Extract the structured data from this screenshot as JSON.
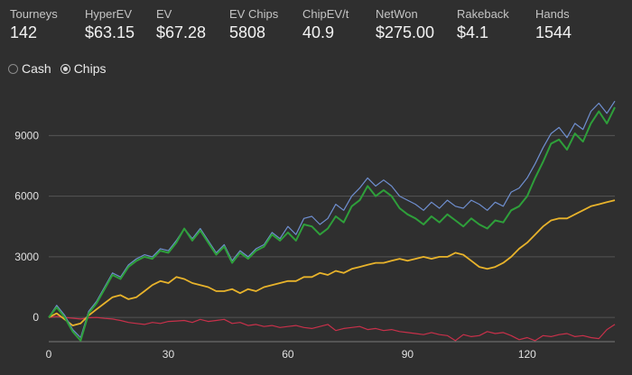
{
  "stats": [
    {
      "label": "Tourneys",
      "value": "142"
    },
    {
      "label": "HyperEV",
      "value": "$63.15"
    },
    {
      "label": "EV",
      "value": "$67.28"
    },
    {
      "label": "EV Chips",
      "value": "5808"
    },
    {
      "label": "ChipEV/t",
      "value": "40.9"
    },
    {
      "label": "NetWon",
      "value": "$275.00"
    },
    {
      "label": "Rakeback",
      "value": "$4.1"
    },
    {
      "label": "Hands",
      "value": "1544"
    }
  ],
  "modes": {
    "cash_label": "Cash",
    "chips_label": "Chips",
    "selected": "Chips"
  },
  "chart_data": {
    "type": "line",
    "x_ticks": [
      0,
      30,
      60,
      90,
      120
    ],
    "y_ticks": [
      0,
      3000,
      6000,
      9000
    ],
    "xlim": [
      0,
      142
    ],
    "ylim": [
      -1200,
      10800
    ],
    "grid": "horizontal",
    "colors": {
      "blue": "#6f8fd0",
      "green": "#2e9f3a",
      "yellow": "#e8b32b",
      "red": "#c8304a"
    },
    "series": [
      {
        "color": "blue",
        "x": [
          0,
          2,
          4,
          6,
          8,
          10,
          12,
          14,
          16,
          18,
          20,
          22,
          24,
          26,
          28,
          30,
          32,
          34,
          36,
          38,
          40,
          42,
          44,
          46,
          48,
          50,
          52,
          54,
          56,
          58,
          60,
          62,
          64,
          66,
          68,
          70,
          72,
          74,
          76,
          78,
          80,
          82,
          84,
          86,
          88,
          90,
          92,
          94,
          96,
          98,
          100,
          102,
          104,
          106,
          108,
          110,
          112,
          114,
          116,
          118,
          120,
          122,
          124,
          126,
          128,
          130,
          132,
          134,
          136,
          138,
          140,
          142
        ],
        "y": [
          0,
          600,
          100,
          -600,
          -1000,
          300,
          800,
          1500,
          2200,
          2000,
          2600,
          2900,
          3100,
          3000,
          3400,
          3300,
          3800,
          4400,
          3900,
          4400,
          3800,
          3200,
          3600,
          2800,
          3300,
          3000,
          3400,
          3600,
          4200,
          3900,
          4500,
          4100,
          4900,
          5000,
          4600,
          4900,
          5600,
          5300,
          6000,
          6400,
          6900,
          6500,
          6800,
          6500,
          6000,
          5800,
          5600,
          5300,
          5700,
          5400,
          5800,
          5500,
          5400,
          5800,
          5600,
          5300,
          5700,
          5500,
          6200,
          6400,
          6900,
          7600,
          8400,
          9100,
          9400,
          8900,
          9600,
          9300,
          10200,
          10600,
          10100,
          10700
        ]
      },
      {
        "color": "green",
        "x": [
          0,
          2,
          4,
          6,
          8,
          10,
          12,
          14,
          16,
          18,
          20,
          22,
          24,
          26,
          28,
          30,
          32,
          34,
          36,
          38,
          40,
          42,
          44,
          46,
          48,
          50,
          52,
          54,
          56,
          58,
          60,
          62,
          64,
          66,
          68,
          70,
          72,
          74,
          76,
          78,
          80,
          82,
          84,
          86,
          88,
          90,
          92,
          94,
          96,
          98,
          100,
          102,
          104,
          106,
          108,
          110,
          112,
          114,
          116,
          118,
          120,
          122,
          124,
          126,
          128,
          130,
          132,
          134,
          136,
          138,
          140,
          142
        ],
        "y": [
          0,
          500,
          0,
          -700,
          -1150,
          200,
          700,
          1400,
          2100,
          1900,
          2500,
          2800,
          3000,
          2900,
          3300,
          3200,
          3700,
          4400,
          3800,
          4300,
          3700,
          3100,
          3500,
          2700,
          3200,
          2900,
          3300,
          3500,
          4100,
          3800,
          4200,
          3800,
          4600,
          4500,
          4100,
          4400,
          5000,
          4700,
          5500,
          5800,
          6500,
          6000,
          6300,
          6000,
          5400,
          5100,
          4900,
          4600,
          5000,
          4700,
          5100,
          4800,
          4500,
          4900,
          4600,
          4400,
          4800,
          4700,
          5300,
          5500,
          6000,
          6900,
          7700,
          8600,
          8800,
          8300,
          9100,
          8700,
          9600,
          10200,
          9600,
          10400
        ]
      },
      {
        "color": "yellow",
        "x": [
          0,
          2,
          4,
          6,
          8,
          10,
          12,
          14,
          16,
          18,
          20,
          22,
          24,
          26,
          28,
          30,
          32,
          34,
          36,
          38,
          40,
          42,
          44,
          46,
          48,
          50,
          52,
          54,
          56,
          58,
          60,
          62,
          64,
          66,
          68,
          70,
          72,
          74,
          76,
          78,
          80,
          82,
          84,
          86,
          88,
          90,
          92,
          94,
          96,
          98,
          100,
          102,
          104,
          106,
          108,
          110,
          112,
          114,
          116,
          118,
          120,
          122,
          124,
          126,
          128,
          130,
          132,
          134,
          136,
          138,
          140,
          142
        ],
        "y": [
          0,
          200,
          -100,
          -400,
          -300,
          100,
          400,
          700,
          1000,
          1100,
          900,
          1000,
          1300,
          1600,
          1800,
          1700,
          2000,
          1900,
          1700,
          1600,
          1500,
          1300,
          1300,
          1400,
          1200,
          1400,
          1300,
          1500,
          1600,
          1700,
          1800,
          1800,
          2000,
          2000,
          2200,
          2100,
          2300,
          2200,
          2400,
          2500,
          2600,
          2700,
          2700,
          2800,
          2900,
          2800,
          2900,
          3000,
          2900,
          3000,
          3000,
          3200,
          3100,
          2800,
          2500,
          2400,
          2500,
          2700,
          3000,
          3400,
          3700,
          4100,
          4500,
          4800,
          4900,
          4900,
          5100,
          5300,
          5500,
          5600,
          5700,
          5800
        ]
      },
      {
        "color": "red",
        "x": [
          0,
          2,
          4,
          6,
          8,
          10,
          12,
          14,
          16,
          18,
          20,
          22,
          24,
          26,
          28,
          30,
          32,
          34,
          36,
          38,
          40,
          42,
          44,
          46,
          48,
          50,
          52,
          54,
          56,
          58,
          60,
          62,
          64,
          66,
          68,
          70,
          72,
          74,
          76,
          78,
          80,
          82,
          84,
          86,
          88,
          90,
          92,
          94,
          96,
          98,
          100,
          102,
          104,
          106,
          108,
          110,
          112,
          114,
          116,
          118,
          120,
          122,
          124,
          126,
          128,
          130,
          132,
          134,
          136,
          138,
          140,
          142
        ],
        "y": [
          0,
          50,
          0,
          -40,
          -80,
          -20,
          0,
          -50,
          -80,
          -150,
          -250,
          -300,
          -350,
          -250,
          -300,
          -200,
          -180,
          -150,
          -250,
          -100,
          -200,
          -150,
          -100,
          -300,
          -250,
          -400,
          -350,
          -450,
          -400,
          -500,
          -450,
          -400,
          -500,
          -550,
          -450,
          -350,
          -650,
          -550,
          -500,
          -450,
          -600,
          -550,
          -650,
          -600,
          -700,
          -750,
          -800,
          -850,
          -750,
          -850,
          -900,
          -1150,
          -850,
          -950,
          -900,
          -700,
          -800,
          -750,
          -900,
          -1100,
          -1000,
          -1150,
          -900,
          -950,
          -850,
          -800,
          -950,
          -900,
          -1000,
          -1050,
          -600,
          -350
        ]
      }
    ]
  }
}
